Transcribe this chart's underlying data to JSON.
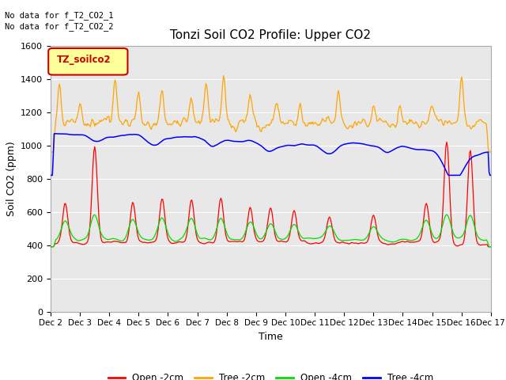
{
  "title": "Tonzi Soil CO2 Profile: Upper CO2",
  "xlabel": "Time",
  "ylabel": "Soil CO2 (ppm)",
  "ylim": [
    0,
    1600
  ],
  "yticks": [
    0,
    200,
    400,
    600,
    800,
    1000,
    1200,
    1400,
    1600
  ],
  "xtick_labels": [
    "Dec 2",
    "Dec 3",
    "Dec 4",
    "Dec 5",
    "Dec 6",
    "Dec 7",
    "Dec 8",
    "Dec 9",
    "Dec 10",
    "Dec 11",
    "Dec 12",
    "Dec 13",
    "Dec 14",
    "Dec 15",
    "Dec 16",
    "Dec 17"
  ],
  "no_data_text": [
    "No data for f_T2_CO2_1",
    "No data for f_T2_CO2_2"
  ],
  "legend_label": "TZ_soilco2",
  "legend_box_facecolor": "#ffff99",
  "legend_box_edgecolor": "#cc0000",
  "legend_text_color": "#cc0000",
  "colors": {
    "open_2cm": "#ff0000",
    "tree_2cm": "#ffa500",
    "open_4cm": "#00dd00",
    "tree_4cm": "#0000ff"
  },
  "legend_entries": [
    "Open -2cm",
    "Tree -2cm",
    "Open -4cm",
    "Tree -4cm"
  ],
  "plot_bg": "#e8e8e8",
  "fig_bg": "#ffffff"
}
